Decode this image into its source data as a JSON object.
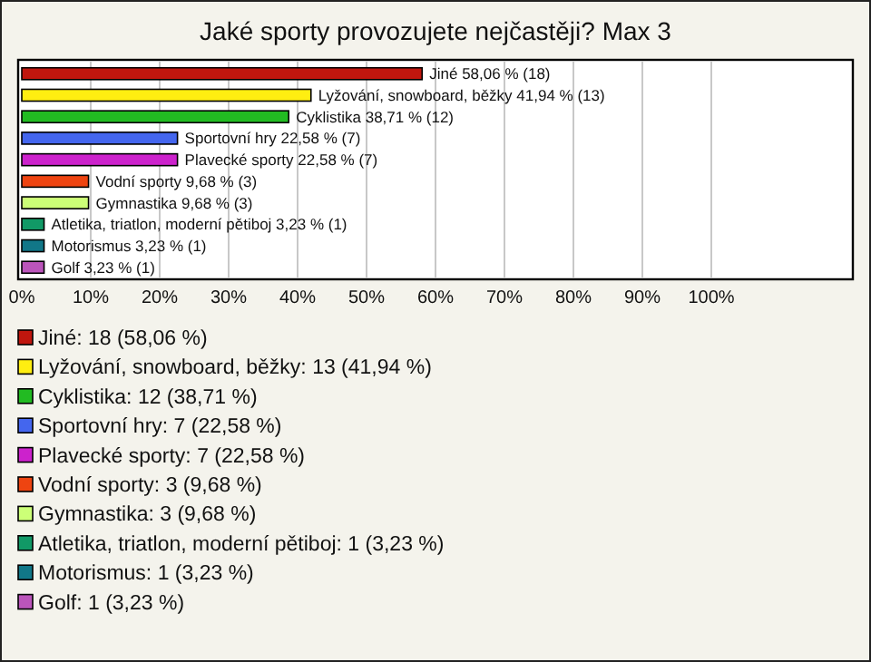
{
  "chart_data": {
    "type": "bar",
    "orientation": "horizontal",
    "title": "Jaké sporty provozujete nejčastěji? Max 3",
    "categories": [
      "Jiné",
      "Lyžování, snowboard, běžky",
      "Cyklistika",
      "Sportovní hry",
      "Plavecké sporty",
      "Vodní sporty",
      "Gymnastika",
      "Atletika, triatlon, moderní pětiboj",
      "Motorismus",
      "Golf"
    ],
    "series": [
      {
        "name": "Jiné: 18 (58,06 %)",
        "color": "#c0160e",
        "values": [
          58.06,
          null,
          null,
          null,
          null,
          null,
          null,
          null,
          null,
          null
        ],
        "value_labels": [
          "58,06 % (18)",
          null,
          null,
          null,
          null,
          null,
          null,
          null,
          null,
          null
        ]
      },
      {
        "name": "Lyžování, snowboard, běžky: 13 (41,94 %)",
        "color": "#ffee11",
        "values": [
          null,
          41.94,
          null,
          null,
          null,
          null,
          null,
          null,
          null,
          null
        ],
        "value_labels": [
          null,
          "41,94 % (13)",
          null,
          null,
          null,
          null,
          null,
          null,
          null,
          null
        ]
      },
      {
        "name": "Cyklistika: 12 (38,71 %)",
        "color": "#22bb22",
        "values": [
          null,
          null,
          38.71,
          null,
          null,
          null,
          null,
          null,
          null,
          null
        ],
        "value_labels": [
          null,
          null,
          "38,71 % (12)",
          null,
          null,
          null,
          null,
          null,
          null,
          null
        ]
      },
      {
        "name": "Sportovní hry: 7 (22,58 %)",
        "color": "#4466ee",
        "values": [
          null,
          null,
          null,
          22.58,
          null,
          null,
          null,
          null,
          null,
          null
        ],
        "value_labels": [
          null,
          null,
          null,
          "22,58 % (7)",
          null,
          null,
          null,
          null,
          null,
          null
        ]
      },
      {
        "name": "Plavecké sporty: 7 (22,58 %)",
        "color": "#cc22cc",
        "values": [
          null,
          null,
          null,
          null,
          22.58,
          null,
          null,
          null,
          null,
          null
        ],
        "value_labels": [
          null,
          null,
          null,
          null,
          "22,58 % (7)",
          null,
          null,
          null,
          null,
          null
        ]
      },
      {
        "name": "Vodní sporty: 3 (9,68 %)",
        "color": "#ee4411",
        "values": [
          null,
          null,
          null,
          null,
          null,
          9.68,
          null,
          null,
          null,
          null
        ],
        "value_labels": [
          null,
          null,
          null,
          null,
          null,
          "9,68 % (3)",
          null,
          null,
          null,
          null
        ]
      },
      {
        "name": "Gymnastika: 3 (9,68 %)",
        "color": "#ccff77",
        "values": [
          null,
          null,
          null,
          null,
          null,
          null,
          9.68,
          null,
          null,
          null
        ],
        "value_labels": [
          null,
          null,
          null,
          null,
          null,
          null,
          "9,68 % (3)",
          null,
          null,
          null
        ]
      },
      {
        "name": "Atletika, triatlon, moderní pětiboj: 1 (3,23 %)",
        "color": "#119966",
        "values": [
          null,
          null,
          null,
          null,
          null,
          null,
          null,
          3.23,
          null,
          null
        ],
        "value_labels": [
          null,
          null,
          null,
          null,
          null,
          null,
          null,
          "3,23 % (1)",
          null,
          null
        ]
      },
      {
        "name": "Motorismus: 1 (3,23 %)",
        "color": "#117788",
        "values": [
          null,
          null,
          null,
          null,
          null,
          null,
          null,
          null,
          3.23,
          null
        ],
        "value_labels": [
          null,
          null,
          null,
          null,
          null,
          null,
          null,
          null,
          "3,23 % (1)",
          null
        ]
      },
      {
        "name": "Golf: 1 (3,23 %)",
        "color": "#bb55bb",
        "values": [
          null,
          null,
          null,
          null,
          null,
          null,
          null,
          null,
          null,
          3.23
        ],
        "value_labels": [
          null,
          null,
          null,
          null,
          null,
          null,
          null,
          null,
          null,
          "3,23 % (1)"
        ]
      }
    ],
    "xlim": [
      0,
      120
    ],
    "xticks": [
      {
        "value": 0,
        "label": "0%"
      },
      {
        "value": 10,
        "label": "10%"
      },
      {
        "value": 20,
        "label": "20%"
      },
      {
        "value": 30,
        "label": "30%"
      },
      {
        "value": 40,
        "label": "40%"
      },
      {
        "value": 50,
        "label": "50%"
      },
      {
        "value": 60,
        "label": "60%"
      },
      {
        "value": 70,
        "label": "70%"
      },
      {
        "value": 80,
        "label": "80%"
      },
      {
        "value": 90,
        "label": "90%"
      },
      {
        "value": 100,
        "label": "100%"
      }
    ],
    "grid": "x",
    "legend": "bottom"
  }
}
